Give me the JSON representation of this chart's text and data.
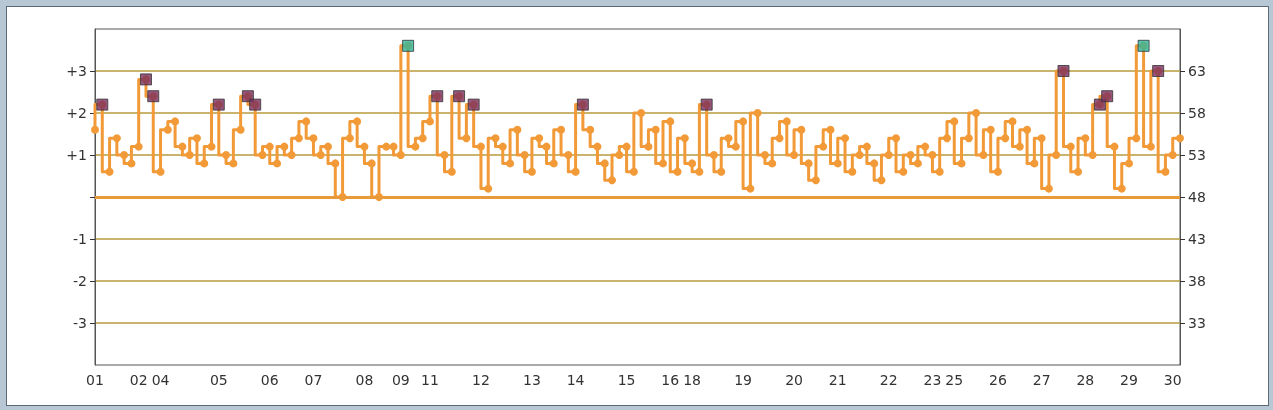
{
  "chart_data": {
    "type": "step",
    "categories": [
      "01",
      null,
      null,
      null,
      null,
      null,
      "02",
      null,
      null,
      "04",
      null,
      null,
      null,
      null,
      null,
      null,
      null,
      "05",
      null,
      null,
      null,
      null,
      null,
      null,
      "06",
      null,
      null,
      null,
      null,
      null,
      "07",
      null,
      null,
      null,
      null,
      null,
      null,
      "08",
      null,
      null,
      null,
      null,
      "09",
      null,
      null,
      null,
      "11",
      null,
      null,
      null,
      null,
      null,
      null,
      "12",
      null,
      null,
      null,
      null,
      null,
      null,
      "13",
      null,
      null,
      null,
      null,
      null,
      "14",
      null,
      null,
      null,
      null,
      null,
      null,
      "15",
      null,
      null,
      null,
      null,
      null,
      "16",
      null,
      null,
      "18",
      null,
      null,
      null,
      null,
      null,
      null,
      "19",
      null,
      null,
      null,
      null,
      null,
      null,
      "20",
      null,
      null,
      null,
      null,
      null,
      "21",
      null,
      null,
      null,
      null,
      null,
      null,
      "22",
      null,
      null,
      null,
      null,
      null,
      "23",
      null,
      null,
      "25",
      null,
      null,
      null,
      null,
      null,
      "26",
      null,
      null,
      null,
      null,
      null,
      "27",
      null,
      null,
      null,
      null,
      null,
      "28",
      null,
      null,
      null,
      null,
      null,
      "29",
      null,
      null,
      null,
      null,
      null,
      "30",
      null
    ],
    "series": [
      {
        "axis": "y2",
        "color": "#f29a38",
        "marker": "circle",
        "values": [
          56,
          59,
          51,
          55,
          53,
          52,
          54,
          62,
          60,
          51,
          56,
          57,
          54,
          53,
          55,
          52,
          54,
          59,
          53,
          52,
          56,
          60,
          59,
          53,
          54,
          52,
          54,
          53,
          55,
          57,
          55,
          53,
          54,
          52,
          48,
          55,
          57,
          54,
          52,
          48,
          54,
          54,
          53,
          66,
          54,
          55,
          57,
          60,
          53,
          51,
          60,
          55,
          59,
          54,
          49,
          55,
          54,
          52,
          56,
          53,
          51,
          55,
          54,
          52,
          56,
          53,
          51,
          59,
          56,
          54,
          52,
          50,
          53,
          54,
          51,
          58,
          54,
          56,
          52,
          57,
          51,
          55,
          52,
          51,
          59,
          53,
          51,
          55,
          54,
          57,
          49,
          58,
          53,
          52,
          55,
          57,
          53,
          56,
          52,
          50,
          54,
          56,
          52,
          55,
          51,
          53,
          54,
          52,
          50,
          53,
          55,
          51,
          53,
          52,
          54,
          53,
          51,
          55,
          57,
          52,
          55,
          58,
          53,
          56,
          51,
          55,
          57,
          54,
          56,
          52,
          55,
          49,
          53,
          63,
          54,
          51,
          55,
          53,
          59,
          60,
          54,
          49,
          52,
          55,
          66,
          54,
          63,
          51,
          53,
          55
        ]
      },
      {
        "type": "scatter",
        "axis": "y2",
        "color": "#7b2d5e",
        "marker": "square",
        "values": [
          null,
          59,
          null,
          null,
          null,
          null,
          null,
          62,
          60,
          null,
          null,
          null,
          null,
          null,
          null,
          null,
          null,
          59,
          null,
          null,
          null,
          60,
          59,
          null,
          null,
          null,
          null,
          null,
          null,
          null,
          null,
          null,
          null,
          null,
          null,
          null,
          null,
          null,
          null,
          null,
          null,
          null,
          null,
          null,
          null,
          null,
          null,
          60,
          null,
          null,
          60,
          null,
          59,
          null,
          null,
          null,
          null,
          null,
          null,
          null,
          null,
          null,
          null,
          null,
          null,
          null,
          null,
          59,
          null,
          null,
          null,
          null,
          null,
          null,
          null,
          null,
          null,
          null,
          null,
          null,
          null,
          null,
          null,
          null,
          59,
          null,
          null,
          null,
          null,
          null,
          null,
          null,
          null,
          null,
          null,
          null,
          null,
          null,
          null,
          null,
          null,
          null,
          null,
          null,
          null,
          null,
          null,
          null,
          null,
          null,
          null,
          null,
          null,
          null,
          null,
          null,
          null,
          null,
          null,
          null,
          null,
          null,
          null,
          null,
          null,
          null,
          null,
          null,
          null,
          null,
          null,
          null,
          null,
          63,
          null,
          null,
          null,
          null,
          59,
          60,
          null,
          null,
          null,
          null,
          null,
          null,
          63,
          null,
          null,
          null
        ]
      },
      {
        "type": "scatter",
        "axis": "y2",
        "color": "#2fb59a",
        "marker": "square",
        "values": [
          null,
          null,
          null,
          null,
          null,
          null,
          null,
          null,
          null,
          null,
          null,
          null,
          null,
          null,
          null,
          null,
          null,
          null,
          null,
          null,
          null,
          null,
          null,
          null,
          null,
          null,
          null,
          null,
          null,
          null,
          null,
          null,
          null,
          null,
          null,
          null,
          null,
          null,
          null,
          null,
          null,
          null,
          null,
          66,
          null,
          null,
          null,
          null,
          null,
          null,
          null,
          null,
          null,
          null,
          null,
          null,
          null,
          null,
          null,
          null,
          null,
          null,
          null,
          null,
          null,
          null,
          null,
          null,
          null,
          null,
          null,
          null,
          null,
          null,
          null,
          null,
          null,
          null,
          null,
          null,
          null,
          null,
          null,
          null,
          null,
          null,
          null,
          null,
          null,
          null,
          null,
          null,
          null,
          null,
          null,
          null,
          null,
          null,
          null,
          null,
          null,
          null,
          null,
          null,
          null,
          null,
          null,
          null,
          null,
          null,
          null,
          null,
          null,
          null,
          null,
          null,
          null,
          null,
          null,
          null,
          null,
          null,
          null,
          null,
          null,
          null,
          null,
          null,
          null,
          null,
          null,
          null,
          null,
          null,
          null,
          null,
          null,
          null,
          null,
          null,
          null,
          null,
          null,
          null,
          66,
          null,
          null,
          null,
          null,
          null
        ]
      }
    ],
    "ylim": [
      -4,
      4
    ],
    "yticks": [
      -3,
      -2,
      -1,
      {
        "value": 0,
        "label": null
      },
      {
        "value": 1,
        "label": "+1"
      },
      {
        "value": 2,
        "label": "+2"
      },
      {
        "value": 3,
        "label": "+3"
      }
    ],
    "y2lim": [
      28,
      68
    ],
    "y2ticks": [
      33,
      38,
      43,
      48,
      53,
      58,
      63
    ],
    "grid": "y",
    "ref_lines": [
      {
        "axis": "y2",
        "value": 48,
        "color": "#e89a3a"
      }
    ]
  }
}
